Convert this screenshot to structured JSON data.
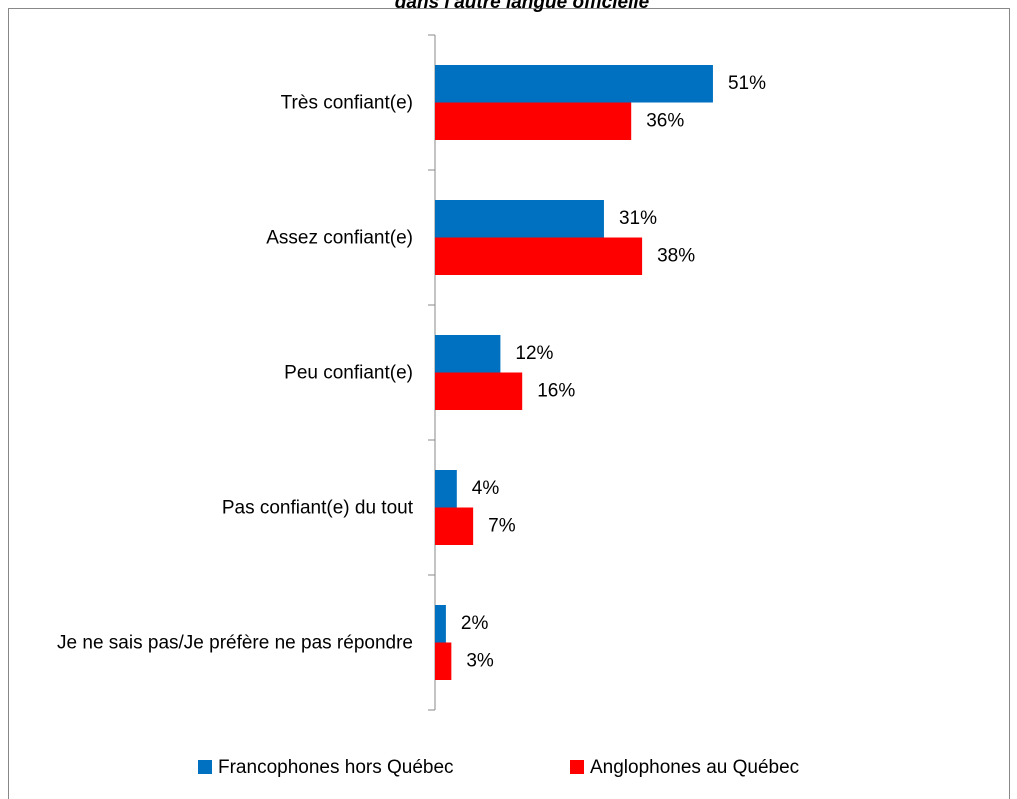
{
  "chart_data": {
    "type": "bar",
    "orientation": "horizontal",
    "title": "dans l'autre langue officielle",
    "categories": [
      "Très confiant(e)",
      "Assez confiant(e)",
      "Peu confiant(e)",
      "Pas confiant(e) du tout",
      "Je ne sais pas/Je préfère ne pas répondre"
    ],
    "series": [
      {
        "name": "Francophones hors Québec",
        "color": "#0070c0",
        "values": [
          51,
          31,
          12,
          4,
          2
        ],
        "value_labels": [
          "51%",
          "31%",
          "12%",
          "4%",
          "2%"
        ]
      },
      {
        "name": "Anglophones au Québec",
        "color": "#ff0000",
        "values": [
          36,
          38,
          16,
          7,
          3
        ],
        "value_labels": [
          "36%",
          "38%",
          "16%",
          "7%",
          "3%"
        ]
      }
    ],
    "xlim": [
      0,
      100
    ],
    "legend": "bottom"
  }
}
